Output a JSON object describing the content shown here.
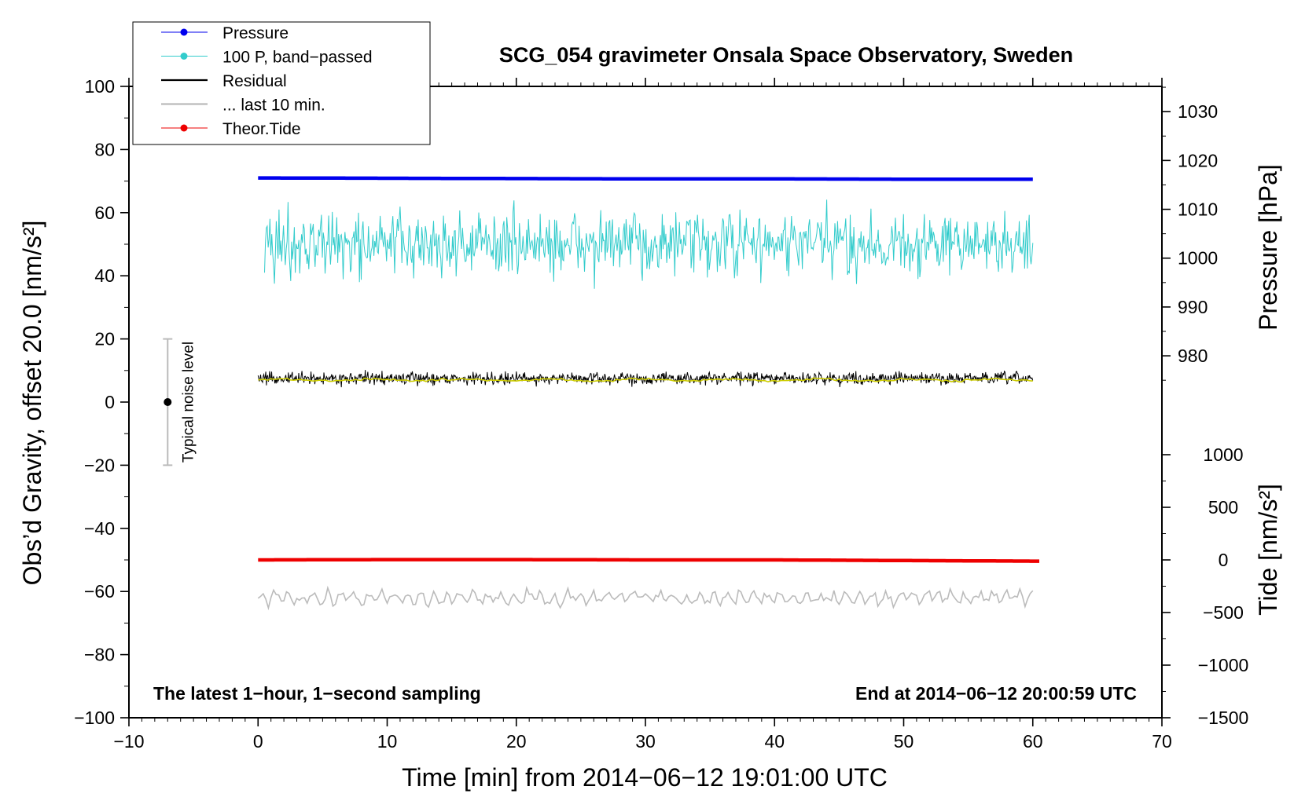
{
  "chart_data": {
    "type": "line",
    "title": "SCG_054 gravimeter Onsala Space Observatory, Sweden",
    "xlabel": "Time [min] from 2014−06−12 19:01:00 UTC",
    "ylabel_left": "Obs’d Gravity, offset 20.0 [nm/s²]",
    "ylabel_right_top": "Pressure [hPa]",
    "ylabel_right_bottom": "Tide [nm/s²]",
    "xlim": [
      -10,
      70
    ],
    "ylim": [
      -100,
      100
    ],
    "x_ticks": [
      -10,
      0,
      10,
      20,
      30,
      40,
      50,
      60,
      70
    ],
    "x_tick_labels": [
      "−10",
      "0",
      "10",
      "20",
      "30",
      "40",
      "50",
      "60",
      "70"
    ],
    "y_ticks": [
      -100,
      -80,
      -60,
      -40,
      -20,
      0,
      20,
      40,
      60,
      80,
      100
    ],
    "y_tick_labels": [
      "−100",
      "−80",
      "−60",
      "−40",
      "−20",
      "0",
      "20",
      "40",
      "60",
      "80",
      "100"
    ],
    "pressure_axis": {
      "ticks": [
        980,
        990,
        1000,
        1010,
        1020,
        1030
      ],
      "tick_labels": [
        "980",
        "990",
        "1000",
        "1010",
        "1020",
        "1030"
      ],
      "ref": {
        "hpa": 1030,
        "gravity": 92
      },
      "gravity_per_hpa": 1.547
    },
    "tide_axis": {
      "ticks": [
        -1500,
        -1000,
        -500,
        0,
        500,
        1000
      ],
      "tick_labels": [
        "−1500",
        "−1000",
        "−500",
        "0",
        "500",
        "1000"
      ],
      "ref": {
        "nms2": 0,
        "gravity": -50
      },
      "gravity_per_nms2": 0.03333
    },
    "legend": [
      {
        "label": "Pressure",
        "color": "#0000ee",
        "marker": true
      },
      {
        "label": "100 P, band−passed",
        "color": "#33cccc",
        "marker": true
      },
      {
        "label": "Residual",
        "color": "#000000",
        "marker": false
      },
      {
        "label": "... last 10 min.",
        "color": "#bbbbbb",
        "marker": false
      },
      {
        "label": "Theor.Tide",
        "color": "#ee0000",
        "marker": true
      }
    ],
    "series": [
      {
        "name": "Pressure",
        "color": "#0000ee",
        "x": [
          0,
          10,
          20,
          30,
          40,
          50,
          60
        ],
        "y": [
          71.0,
          70.9,
          70.8,
          70.7,
          70.7,
          70.6,
          70.6
        ],
        "note": "approx. 1016.4 hPa"
      },
      {
        "name": "100 P, band−passed",
        "color": "#33cccc",
        "x_range": [
          0,
          60
        ],
        "center": 50,
        "amplitude": 9,
        "max_excursion": 17
      },
      {
        "name": "Residual",
        "color": "#000000",
        "x_range": [
          0,
          60
        ],
        "center": 7.5,
        "amplitude": 1.5
      },
      {
        "name": "Residual (smoothed)",
        "color": "#cccc00",
        "x_range": [
          0,
          60
        ],
        "center": 7,
        "amplitude": 0.6
      },
      {
        "name": "... last 10 min.",
        "color": "#bbbbbb",
        "x_range": [
          0,
          60
        ],
        "center": -62,
        "amplitude": 1.8
      },
      {
        "name": "Theor.Tide",
        "color": "#ee0000",
        "x": [
          0,
          10,
          20,
          30,
          40,
          50,
          60.5
        ],
        "y": [
          -50.0,
          -49.9,
          -49.9,
          -50.0,
          -50.0,
          -50.2,
          -50.4
        ]
      }
    ],
    "noise_level": {
      "label": "Typical noise level",
      "x": -7,
      "center": 0,
      "range": [
        -20,
        20
      ]
    },
    "annotation_left": "The latest 1−hour, 1−second sampling",
    "annotation_right": "End at 2014−06−12 20:00:59 UTC"
  }
}
